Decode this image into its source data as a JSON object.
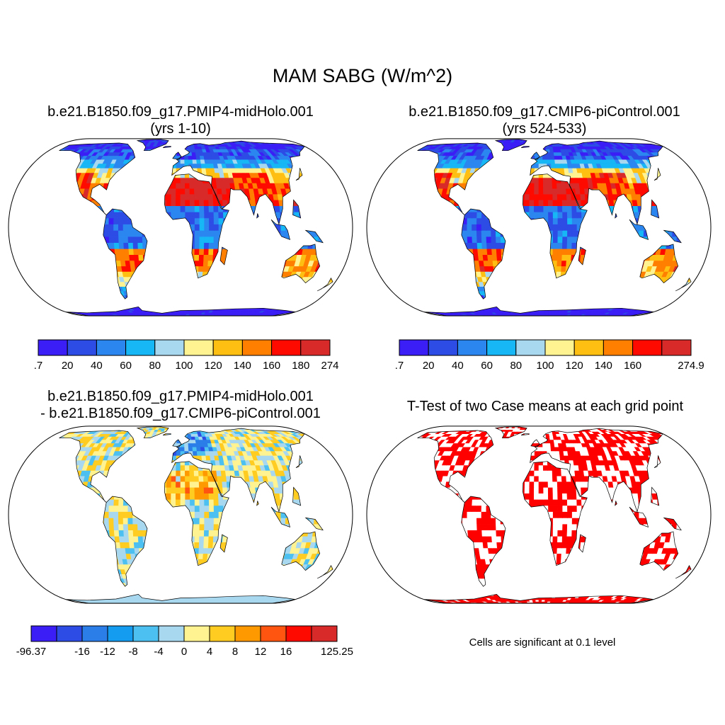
{
  "figure": {
    "title": "MAM SABG (W/m^2)"
  },
  "panels": {
    "top_left": {
      "title_line1": "b.e21.B1850.f09_g17.PMIP4-midHolo.001",
      "title_line2": "(yrs 1-10)",
      "colorbar": {
        "colors": [
          "#3a1ef5",
          "#2d4ce6",
          "#2b86f0",
          "#17b6f5",
          "#a8d8f0",
          "#fff291",
          "#ffbf12",
          "#ff7f00",
          "#ff0a00",
          "#d92a2a"
        ],
        "labels": [
          ".7",
          "20",
          "40",
          "60",
          "80",
          "100",
          "120",
          "140",
          "160",
          "180",
          "274"
        ]
      }
    },
    "top_right": {
      "title_line1": "b.e21.B1850.f09_g17.CMIP6-piControl.001",
      "title_line2": "(yrs 524-533)",
      "colorbar": {
        "colors": [
          "#3a1ef5",
          "#2d4ce6",
          "#2b86f0",
          "#17b6f5",
          "#a8d8f0",
          "#fff291",
          "#ffbf12",
          "#ff7f00",
          "#ff0a00",
          "#d92a2a"
        ],
        "labels": [
          ".7",
          "20",
          "40",
          "60",
          "80",
          "100",
          "120",
          "140",
          "160",
          "",
          "274.9"
        ]
      }
    },
    "bottom_left": {
      "title_line1": "b.e21.B1850.f09_g17.PMIP4-midHolo.001",
      "title_line2": "- b.e21.B1850.f09_g17.CMIP6-piControl.001",
      "colorbar": {
        "colors": [
          "#3a1ef5",
          "#2d4ce6",
          "#2b7de8",
          "#139cf0",
          "#4cc0f0",
          "#a8d8f0",
          "#fff291",
          "#ffcc22",
          "#ff9900",
          "#ff5511",
          "#ff0a00",
          "#d92a2a"
        ],
        "labels": [
          "-96.37",
          "",
          "-16",
          "-12",
          "-8",
          "-4",
          "0",
          "4",
          "8",
          "12",
          "16",
          "",
          "125.25"
        ]
      }
    },
    "bottom_right": {
      "title": "T-Test of two Case means at each grid point",
      "note": "Cells are significant at 0.1 level",
      "significant_color": "#ff0000"
    }
  }
}
